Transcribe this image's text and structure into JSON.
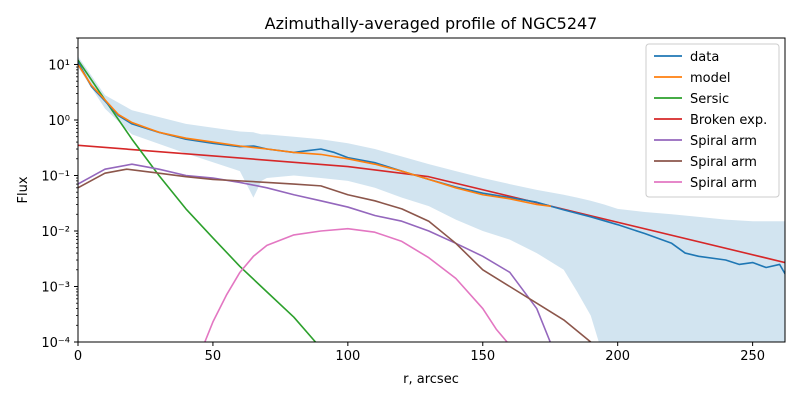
{
  "chart_data": {
    "type": "line",
    "title": "Azimuthally-averaged profile of NGC5247",
    "xlabel": "r, arcsec",
    "ylabel": "Flux",
    "xlim": [
      0,
      262
    ],
    "ylim": [
      0.0001,
      30
    ],
    "yscale": "log",
    "grid": false,
    "legend_position": "top-right",
    "xticks": [
      0,
      50,
      100,
      150,
      200,
      250
    ],
    "xtick_labels": [
      "0",
      "50",
      "100",
      "150",
      "200",
      "250"
    ],
    "yticks": [
      0.0001,
      0.001,
      0.01,
      0.1,
      1,
      10
    ],
    "ytick_labels": [
      "10⁻⁴",
      "10⁻³",
      "10⁻²",
      "10⁻¹",
      "10⁰",
      "10¹"
    ],
    "series": [
      {
        "name": "data",
        "color": "#1f77b4",
        "x": [
          0,
          5,
          10,
          15,
          20,
          30,
          40,
          50,
          60,
          65,
          70,
          80,
          85,
          90,
          95,
          100,
          110,
          120,
          130,
          140,
          150,
          160,
          170,
          180,
          190,
          200,
          210,
          220,
          225,
          230,
          240,
          245,
          250,
          255,
          260,
          262
        ],
        "y": [
          11,
          4.0,
          2.2,
          1.2,
          0.85,
          0.6,
          0.45,
          0.38,
          0.33,
          0.34,
          0.3,
          0.26,
          0.28,
          0.3,
          0.26,
          0.21,
          0.17,
          0.12,
          0.085,
          0.062,
          0.048,
          0.04,
          0.033,
          0.024,
          0.018,
          0.013,
          0.009,
          0.006,
          0.004,
          0.0035,
          0.003,
          0.0025,
          0.0027,
          0.0022,
          0.0025,
          0.0017
        ]
      },
      {
        "name": "model",
        "color": "#ff7f0e",
        "x": [
          0,
          5,
          10,
          15,
          20,
          30,
          40,
          50,
          60,
          70,
          80,
          90,
          100,
          110,
          120,
          130,
          140,
          150,
          160,
          170,
          175
        ],
        "y": [
          10,
          4.2,
          2.3,
          1.25,
          0.9,
          0.6,
          0.47,
          0.4,
          0.34,
          0.3,
          0.26,
          0.24,
          0.2,
          0.16,
          0.12,
          0.085,
          0.06,
          0.045,
          0.038,
          0.03,
          0.028
        ]
      },
      {
        "name": "Sersic",
        "color": "#2ca02c",
        "x": [
          0,
          10,
          20,
          30,
          40,
          50,
          60,
          70,
          80,
          88
        ],
        "y": [
          12,
          2.3,
          0.45,
          0.1,
          0.025,
          0.0075,
          0.0023,
          0.0008,
          0.00028,
          0.0001
        ]
      },
      {
        "name": "Broken exp.",
        "color": "#d62728",
        "x": [
          0,
          100,
          130,
          262
        ],
        "y": [
          0.35,
          0.145,
          0.095,
          0.0027
        ]
      },
      {
        "name": "Spiral arm",
        "color": "#9467bd",
        "x": [
          0,
          10,
          20,
          30,
          40,
          50,
          60,
          70,
          80,
          90,
          100,
          110,
          120,
          130,
          140,
          150,
          160,
          170,
          175
        ],
        "y": [
          0.07,
          0.13,
          0.16,
          0.13,
          0.1,
          0.09,
          0.075,
          0.06,
          0.045,
          0.035,
          0.027,
          0.019,
          0.015,
          0.01,
          0.006,
          0.0035,
          0.0018,
          0.0004,
          0.0001
        ]
      },
      {
        "name": "Spiral arm",
        "color": "#8c564b",
        "x": [
          0,
          10,
          18,
          30,
          40,
          50,
          60,
          70,
          80,
          90,
          100,
          110,
          120,
          130,
          140,
          150,
          160,
          170,
          180,
          190
        ],
        "y": [
          0.06,
          0.11,
          0.13,
          0.11,
          0.095,
          0.085,
          0.08,
          0.075,
          0.07,
          0.065,
          0.045,
          0.035,
          0.025,
          0.015,
          0.006,
          0.002,
          0.001,
          0.0005,
          0.00025,
          0.0001
        ]
      },
      {
        "name": "Spiral arm",
        "color": "#e377c2",
        "x": [
          47,
          50,
          55,
          60,
          65,
          70,
          80,
          90,
          100,
          110,
          120,
          130,
          140,
          150,
          155,
          159
        ],
        "y": [
          0.0001,
          0.00023,
          0.0007,
          0.0018,
          0.0035,
          0.0055,
          0.0085,
          0.01,
          0.011,
          0.0095,
          0.0065,
          0.0033,
          0.0014,
          0.0004,
          0.00017,
          0.0001
        ]
      }
    ],
    "uncertainty_band": {
      "series": "data",
      "color": "#1f77b4",
      "x": [
        0,
        10,
        20,
        40,
        60,
        65,
        68,
        70,
        80,
        90,
        100,
        110,
        120,
        130,
        140,
        150,
        160,
        170,
        180,
        185,
        190,
        193,
        195,
        200,
        210,
        220,
        230,
        240,
        250,
        262
      ],
      "upper": [
        14,
        2.8,
        1.5,
        0.85,
        0.62,
        0.6,
        0.55,
        0.55,
        0.5,
        0.45,
        0.38,
        0.3,
        0.22,
        0.16,
        0.12,
        0.09,
        0.07,
        0.055,
        0.045,
        0.04,
        0.035,
        0.032,
        0.03,
        0.025,
        0.022,
        0.02,
        0.018,
        0.016,
        0.015,
        0.015
      ],
      "lower": [
        9,
        1.6,
        0.55,
        0.25,
        0.12,
        0.04,
        0.08,
        0.09,
        0.1,
        0.09,
        0.08,
        0.06,
        0.04,
        0.028,
        0.016,
        0.01,
        0.007,
        0.004,
        0.002,
        0.0008,
        0.0003,
        0.0001,
        0.0001,
        0.0001,
        0.0001,
        0.0001,
        0.0001,
        0.0001,
        0.0001,
        0.0001
      ]
    }
  }
}
